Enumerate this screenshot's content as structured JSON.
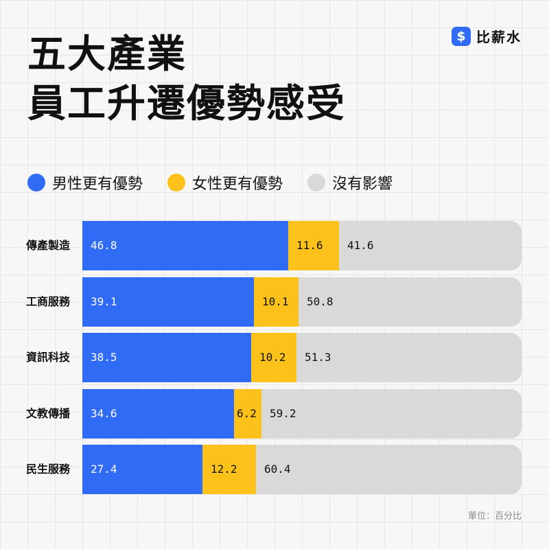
{
  "header": {
    "title_line1": "五大產業",
    "title_line2": "員工升遷優勢感受"
  },
  "brand": {
    "icon_glyph": "$",
    "icon_name": "dollar-icon",
    "name": "比薪水",
    "color": "#2f6bf5"
  },
  "footer": {
    "unit_note": "單位：百分比"
  },
  "chart_data": {
    "type": "bar",
    "orientation": "horizontal",
    "stacked": true,
    "categories": [
      "傳產製造",
      "工商服務",
      "資訊科技",
      "文教傳播",
      "民生服務"
    ],
    "series": [
      {
        "name": "男性更有優勢",
        "color": "#2f6bf5",
        "label_color": "#ffffff",
        "values": [
          46.8,
          39.1,
          38.5,
          34.6,
          27.4
        ]
      },
      {
        "name": "女性更有優勢",
        "color": "#fcc21b",
        "label_color": "#111111",
        "values": [
          11.6,
          10.1,
          10.2,
          6.2,
          12.2
        ]
      },
      {
        "name": "沒有影響",
        "color": "#d9d9d9",
        "label_color": "#111111",
        "values": [
          41.6,
          50.8,
          51.3,
          59.2,
          60.4
        ]
      }
    ],
    "xlim": [
      0,
      100
    ],
    "legend_position": "top-left",
    "grid": false
  }
}
